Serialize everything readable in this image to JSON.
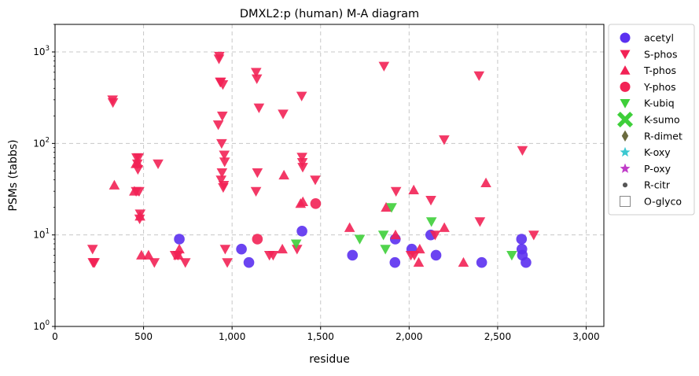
{
  "chart_data": {
    "type": "scatter",
    "title": "DMXL2:p (human) M-A diagram",
    "xlabel": "residue",
    "ylabel": "PSMs (tabbs)",
    "xlim": [
      0,
      3100
    ],
    "ylim": [
      1,
      2000
    ],
    "y_scale": "log",
    "grid": true,
    "legend_position": "outside-right",
    "x_ticks": [
      0,
      500,
      1000,
      1500,
      2000,
      2500,
      3000
    ],
    "x_tick_labels": [
      "0",
      "500",
      "1,000",
      "1,500",
      "2,000",
      "2,500",
      "3,000"
    ],
    "y_ticks": [
      1,
      10,
      100,
      1000
    ],
    "y_tick_labels": [
      "10^0",
      "10^1",
      "10^2",
      "10^3"
    ],
    "series": [
      {
        "name": "acetyl",
        "color": "#5b30f0",
        "marker": "circle",
        "points": [
          [
            702,
            9
          ],
          [
            1053,
            7
          ],
          [
            1095,
            5
          ],
          [
            1395,
            11
          ],
          [
            1680,
            6
          ],
          [
            1920,
            5
          ],
          [
            1922,
            9
          ],
          [
            2015,
            7
          ],
          [
            2122,
            10
          ],
          [
            2152,
            6
          ],
          [
            2410,
            5
          ],
          [
            2635,
            9
          ],
          [
            2637,
            7
          ],
          [
            2640,
            6
          ],
          [
            2660,
            5
          ]
        ]
      },
      {
        "name": "S-phos",
        "color": "#f22255",
        "marker": "triangle-down",
        "points": [
          [
            212,
            7
          ],
          [
            214,
            5
          ],
          [
            218,
            5
          ],
          [
            223,
            5
          ],
          [
            325,
            300
          ],
          [
            327,
            280
          ],
          [
            458,
            30
          ],
          [
            461,
            70
          ],
          [
            465,
            60
          ],
          [
            468,
            52
          ],
          [
            472,
            70
          ],
          [
            475,
            30
          ],
          [
            478,
            15
          ],
          [
            481,
            17
          ],
          [
            561,
            5
          ],
          [
            582,
            60
          ],
          [
            678,
            6
          ],
          [
            694,
            6
          ],
          [
            736,
            5
          ],
          [
            922,
            160
          ],
          [
            926,
            840
          ],
          [
            928,
            900
          ],
          [
            933,
            470
          ],
          [
            936,
            470
          ],
          [
            938,
            40
          ],
          [
            941,
            100
          ],
          [
            943,
            48
          ],
          [
            945,
            200
          ],
          [
            948,
            440
          ],
          [
            950,
            33
          ],
          [
            953,
            35
          ],
          [
            956,
            75
          ],
          [
            958,
            63
          ],
          [
            961,
            7
          ],
          [
            973,
            5
          ],
          [
            1135,
            30
          ],
          [
            1136,
            600
          ],
          [
            1140,
            510
          ],
          [
            1143,
            48
          ],
          [
            1152,
            245
          ],
          [
            1211,
            6
          ],
          [
            1232,
            6
          ],
          [
            1288,
            210
          ],
          [
            1367,
            7
          ],
          [
            1393,
            330
          ],
          [
            1395,
            71
          ],
          [
            1397,
            62
          ],
          [
            1399,
            55
          ],
          [
            1470,
            40
          ],
          [
            1858,
            700
          ],
          [
            1926,
            30
          ],
          [
            2010,
            6
          ],
          [
            2030,
            6
          ],
          [
            2123,
            24
          ],
          [
            2147,
            10
          ],
          [
            2198,
            110
          ],
          [
            2395,
            550
          ],
          [
            2400,
            14
          ],
          [
            2640,
            84
          ],
          [
            2704,
            10
          ]
        ]
      },
      {
        "name": "T-phos",
        "color": "#f22255",
        "marker": "triangle-up",
        "points": [
          [
            335,
            35
          ],
          [
            448,
            30
          ],
          [
            457,
            60
          ],
          [
            467,
            61
          ],
          [
            480,
            16
          ],
          [
            488,
            6
          ],
          [
            528,
            6
          ],
          [
            697,
            6
          ],
          [
            702,
            7
          ],
          [
            1284,
            7
          ],
          [
            1293,
            45
          ],
          [
            1387,
            22
          ],
          [
            1400,
            23
          ],
          [
            1664,
            12
          ],
          [
            1870,
            20
          ],
          [
            1923,
            10
          ],
          [
            2026,
            31
          ],
          [
            2054,
            5
          ],
          [
            2060,
            7
          ],
          [
            2199,
            12
          ],
          [
            2307,
            5
          ],
          [
            2434,
            37
          ]
        ]
      },
      {
        "name": "Y-phos",
        "color": "#f22255",
        "marker": "circle",
        "points": [
          [
            1143,
            9
          ],
          [
            1472,
            22
          ]
        ]
      },
      {
        "name": "K-ubiq",
        "color": "#3ecf3a",
        "marker": "triangle-down",
        "points": [
          [
            1362,
            8
          ],
          [
            1721,
            9
          ],
          [
            1855,
            10
          ],
          [
            1866,
            7
          ],
          [
            1901,
            20
          ],
          [
            2126,
            14
          ],
          [
            2580,
            6
          ]
        ]
      },
      {
        "name": "K-sumo",
        "color": "#3ecf3a",
        "marker": "x-filled",
        "points": []
      },
      {
        "name": "R-dimet",
        "color": "#6b6b3e",
        "marker": "diamond",
        "points": []
      },
      {
        "name": "K-oxy",
        "color": "#3cc8d0",
        "marker": "star",
        "points": []
      },
      {
        "name": "P-oxy",
        "color": "#c03cc8",
        "marker": "star",
        "points": []
      },
      {
        "name": "R-citr",
        "color": "#555555",
        "marker": "dot",
        "points": []
      },
      {
        "name": "O-glyco",
        "color": "#888888",
        "marker": "square-open",
        "points": []
      }
    ]
  }
}
